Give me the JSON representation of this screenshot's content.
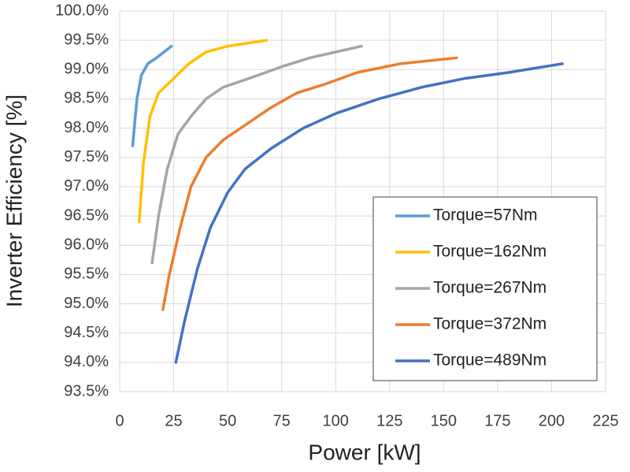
{
  "chart_data": {
    "type": "line",
    "xlabel": "Power [kW]",
    "ylabel": "Inverter Efficiency [%]",
    "xlim": [
      0,
      225
    ],
    "xticks": [
      0,
      25,
      50,
      75,
      100,
      125,
      150,
      175,
      200,
      225
    ],
    "ylim": [
      93.5,
      100
    ],
    "yticks": [
      {
        "value": 93.5,
        "label": "93.5%"
      },
      {
        "value": 94,
        "label": "94.0%"
      },
      {
        "value": 94.5,
        "label": "94.5%"
      },
      {
        "value": 95,
        "label": "95.0%"
      },
      {
        "value": 95.5,
        "label": "95.5%"
      },
      {
        "value": 96,
        "label": "96.0%"
      },
      {
        "value": 96.5,
        "label": "96.5%"
      },
      {
        "value": 97,
        "label": "97.0%"
      },
      {
        "value": 97.5,
        "label": "97.5%"
      },
      {
        "value": 98,
        "label": "98.0%"
      },
      {
        "value": 98.5,
        "label": "98.5%"
      },
      {
        "value": 99,
        "label": "99.0%"
      },
      {
        "value": 99.5,
        "label": "99.5%"
      },
      {
        "value": 100,
        "label": "100.0%"
      }
    ],
    "grid": true,
    "legend": "lower right",
    "series": [
      {
        "name": "Torque=57Nm",
        "color": "#5b9bd5",
        "x": [
          6,
          8,
          10,
          13,
          17,
          24
        ],
        "values": [
          97.7,
          98.5,
          98.9,
          99.1,
          99.2,
          99.4
        ]
      },
      {
        "name": "Torque=162Nm",
        "color": "#ffc000",
        "x": [
          9,
          11,
          14,
          18,
          25,
          32,
          40,
          50,
          68
        ],
        "values": [
          96.4,
          97.4,
          98.2,
          98.6,
          98.85,
          99.1,
          99.3,
          99.4,
          99.5
        ]
      },
      {
        "name": "Torque=267Nm",
        "color": "#a5a5a5",
        "x": [
          15,
          18,
          22,
          27,
          33,
          40,
          48,
          60,
          75,
          88,
          100,
          112
        ],
        "values": [
          95.7,
          96.5,
          97.3,
          97.9,
          98.2,
          98.5,
          98.7,
          98.85,
          99.05,
          99.2,
          99.3,
          99.4
        ]
      },
      {
        "name": "Torque=372Nm",
        "color": "#ed7d31",
        "x": [
          20,
          23,
          28,
          33,
          40,
          48,
          58,
          70,
          82,
          95,
          110,
          130,
          156
        ],
        "values": [
          94.9,
          95.5,
          96.3,
          97.0,
          97.5,
          97.8,
          98.05,
          98.35,
          98.6,
          98.75,
          98.95,
          99.1,
          99.2
        ]
      },
      {
        "name": "Torque=489Nm",
        "color": "#4472c4",
        "x": [
          26,
          30,
          36,
          42,
          50,
          58,
          70,
          85,
          100,
          120,
          140,
          160,
          180,
          205
        ],
        "values": [
          94.0,
          94.7,
          95.6,
          96.3,
          96.9,
          97.3,
          97.65,
          98.0,
          98.25,
          98.5,
          98.7,
          98.85,
          98.95,
          99.1
        ]
      }
    ]
  }
}
